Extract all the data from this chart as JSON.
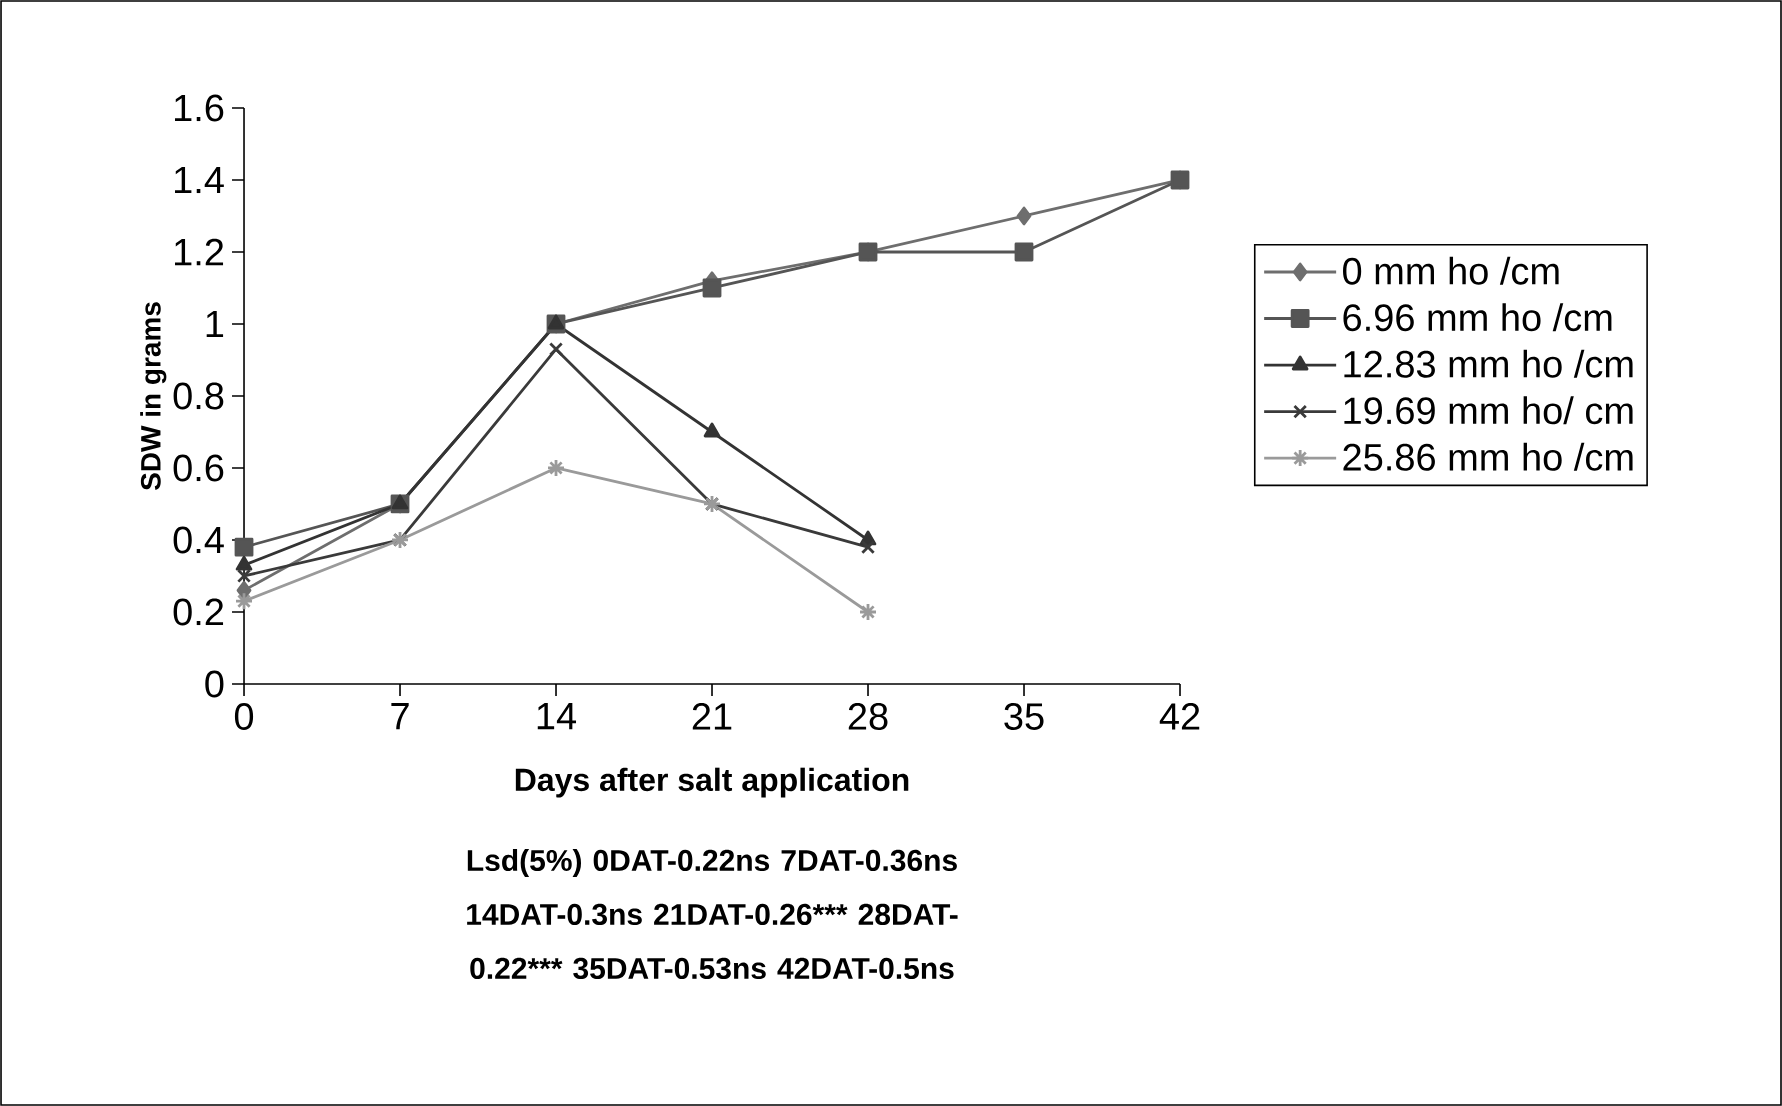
{
  "chart_data": {
    "type": "line",
    "xlabel": "Days after salt application",
    "ylabel": "SDW in grams",
    "categories": [
      "0",
      "7",
      "14",
      "21",
      "28",
      "35",
      "42"
    ],
    "series": [
      {
        "name": "0 mm ho /cm",
        "color": "#6e6e6e",
        "marker": "diamond",
        "values": [
          0.26,
          0.5,
          1.0,
          1.12,
          1.2,
          1.3,
          1.4
        ]
      },
      {
        "name": "6.96 mm ho /cm",
        "color": "#555555",
        "marker": "square",
        "values": [
          0.38,
          0.5,
          1.0,
          1.1,
          1.2,
          1.2,
          1.4
        ]
      },
      {
        "name": "12.83 mm ho /cm",
        "color": "#333333",
        "marker": "triangle",
        "values": [
          0.33,
          0.5,
          1.0,
          0.7,
          0.4,
          null,
          null
        ]
      },
      {
        "name": "19.69 mm ho/ cm",
        "color": "#3a3a3a",
        "marker": "cross",
        "values": [
          0.3,
          0.4,
          0.93,
          0.5,
          0.38,
          null,
          null
        ]
      },
      {
        "name": "25.86 mm ho /cm",
        "color": "#9a9a9a",
        "marker": "cross",
        "values": [
          0.23,
          0.4,
          0.6,
          0.5,
          0.2,
          null,
          null
        ]
      }
    ],
    "ylim": [
      0,
      1.6
    ],
    "yticks": [
      0,
      0.2,
      0.4,
      0.6,
      0.8,
      1,
      1.2,
      1.4,
      1.6
    ],
    "grid": false,
    "legend": "right",
    "line_style": "solid",
    "annotations": [
      "Lsd(5%) 0DAT-0.22ns 7DAT-0.36ns 14DAT-0.3ns 21DAT-0.26***",
      "28DAT-0.22*** 35DAT-0.53ns 42DAT-0.5ns"
    ]
  }
}
